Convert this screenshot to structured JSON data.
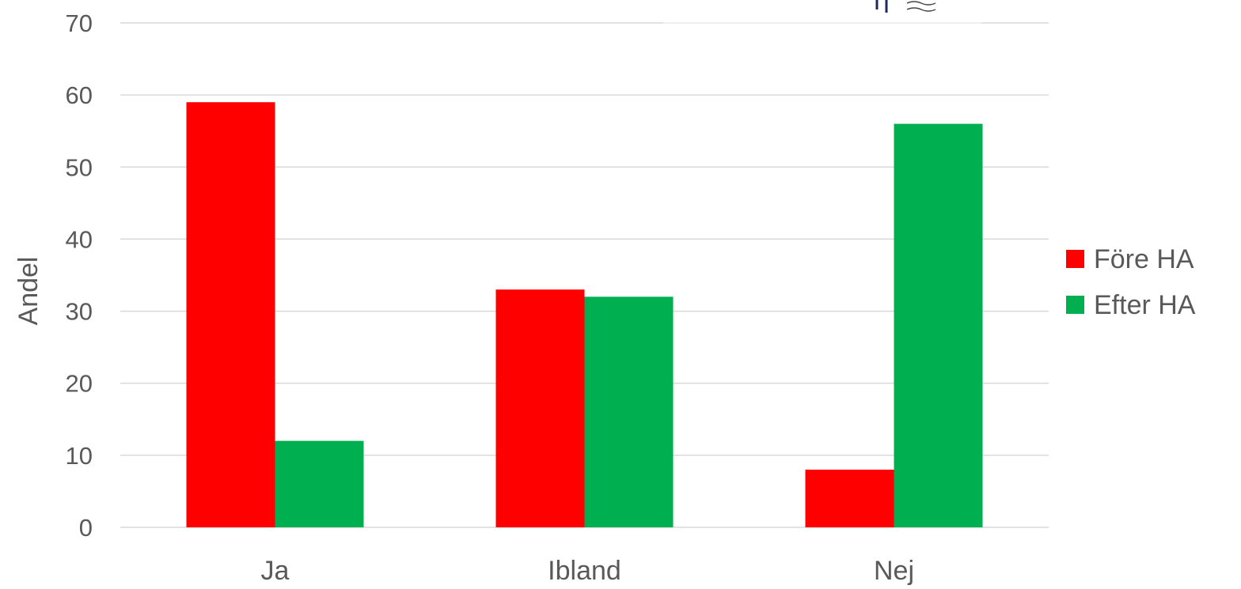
{
  "chart_data": {
    "type": "bar",
    "categories": [
      "Ja",
      "Ibland",
      "Nej"
    ],
    "series": [
      {
        "name": "Före HA",
        "color": "#ff0000",
        "values": [
          59,
          33,
          8
        ]
      },
      {
        "name": "Efter HA",
        "color": "#00b050",
        "values": [
          12,
          32,
          56
        ]
      }
    ],
    "ylabel": "Andel",
    "xlabel": "",
    "ylim": [
      0,
      70
    ],
    "yticks": [
      0,
      10,
      20,
      30,
      40,
      50,
      60,
      70
    ],
    "grid": true,
    "legend_position": "right"
  }
}
